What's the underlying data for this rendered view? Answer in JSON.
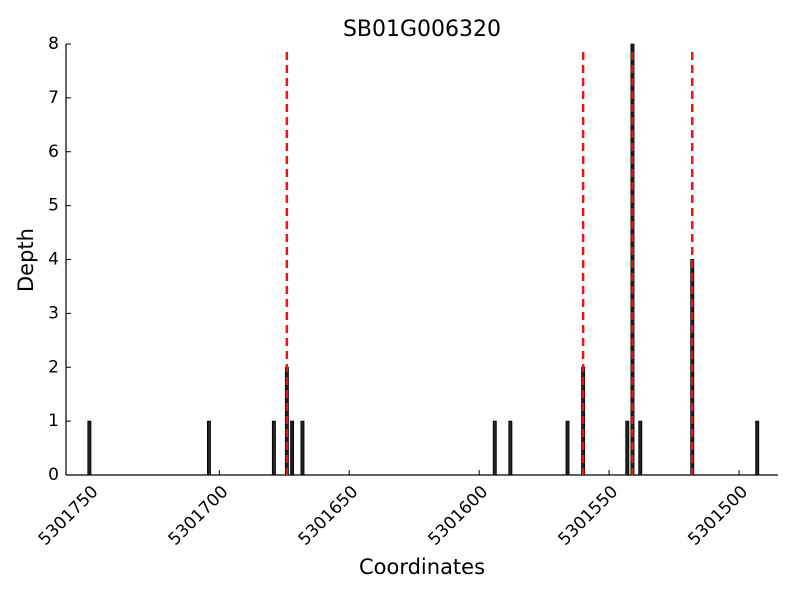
{
  "chart_data": {
    "type": "bar",
    "title": "SB01G006320",
    "x_label": "Coordinates",
    "y_label": "Depth",
    "x": [
      5301750,
      5301704,
      5301679,
      5301674,
      5301672,
      5301668,
      5301594,
      5301588,
      5301566,
      5301560,
      5301543,
      5301541,
      5301538,
      5301518,
      5301493
    ],
    "values": [
      1,
      1,
      1,
      2,
      1,
      1,
      1,
      1,
      1,
      2,
      1,
      8,
      1,
      4,
      1
    ],
    "color": "#222222",
    "highlight_x": [
      5301674,
      5301560,
      5301541,
      5301518
    ],
    "highlight_color": "#e8141b",
    "xlim": [
      5301759,
      5301485
    ],
    "xticks": [
      5301750,
      5301700,
      5301650,
      5301600,
      5301550,
      5301500
    ],
    "ylim": [
      0,
      8
    ],
    "yticks": [
      0,
      1,
      2,
      3,
      4,
      5,
      6,
      7,
      8
    ],
    "grid": false
  }
}
